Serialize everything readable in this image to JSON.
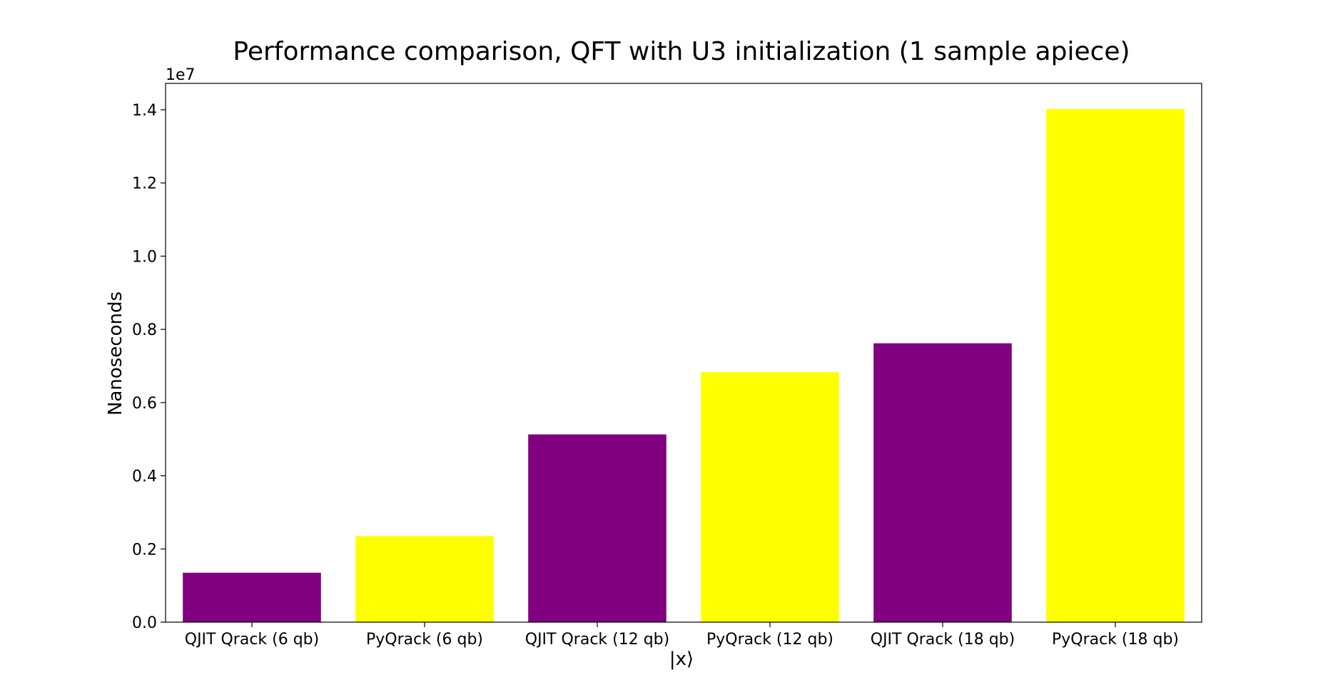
{
  "chart_data": {
    "type": "bar",
    "title": "Performance comparison, QFT with U3 initialization (1 sample apiece)",
    "xlabel": "|x⟩",
    "ylabel": "Nanoseconds",
    "y_offset_label": "1e7",
    "y_scale_factor": 10000000,
    "categories": [
      "QJIT Qrack (6 qb)",
      "PyQrack (6 qb)",
      "QJIT Qrack (12 qb)",
      "PyQrack (12 qb)",
      "QJIT Qrack (18 qb)",
      "PyQrack (18 qb)"
    ],
    "values": [
      1350000,
      2350000,
      5130000,
      6830000,
      7620000,
      14020000
    ],
    "bar_colors": [
      "#800080",
      "#ffff00",
      "#800080",
      "#ffff00",
      "#800080",
      "#ffff00"
    ],
    "yticks": [
      0.0,
      0.2,
      0.4,
      0.6,
      0.8,
      1.0,
      1.2,
      1.4
    ],
    "ytick_labels": [
      "0.0",
      "0.2",
      "0.4",
      "0.6",
      "0.8",
      "1.0",
      "1.2",
      "1.4"
    ],
    "ylim": [
      0,
      14721000
    ],
    "grid": false,
    "legend": false
  }
}
